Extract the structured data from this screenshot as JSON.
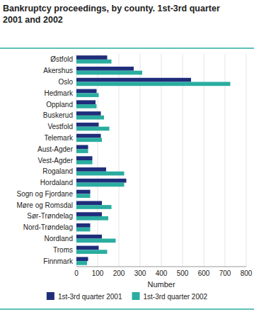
{
  "chart_data": {
    "type": "bar",
    "orientation": "horizontal",
    "title": "Bankruptcy proceedings, by county. 1st-3rd quarter\n2001 and 2002",
    "x_label": "Number",
    "categories": [
      "Østfold",
      "Akershus",
      "Oslo",
      "Hedmark",
      "Oppland",
      "Buskerud",
      "Vestfold",
      "Telemark",
      "Aust-Agder",
      "Vest-Agder",
      "Rogaland",
      "Hordaland",
      "Sogn og Fjordane",
      "Møre og Romsdal",
      "Sør-Trøndelag",
      "Nord-Trøndelag",
      "Nordland",
      "Troms",
      "Finnmark"
    ],
    "series": [
      {
        "name": "1st-3rd quarter 2001",
        "color": "#1f2d7b",
        "values": [
          145,
          270,
          540,
          95,
          90,
          115,
          105,
          115,
          55,
          75,
          140,
          235,
          65,
          120,
          120,
          65,
          120,
          105,
          55
        ]
      },
      {
        "name": "1st-3rd quarter 2002",
        "color": "#2aada0",
        "values": [
          165,
          310,
          725,
          105,
          95,
          130,
          155,
          120,
          55,
          75,
          225,
          225,
          65,
          165,
          150,
          65,
          185,
          145,
          50
        ]
      }
    ],
    "xlim": [
      0,
      800
    ],
    "xticks": [
      0,
      100,
      200,
      300,
      400,
      500,
      600,
      700,
      800
    ],
    "grid": true,
    "legend": "bottom"
  }
}
